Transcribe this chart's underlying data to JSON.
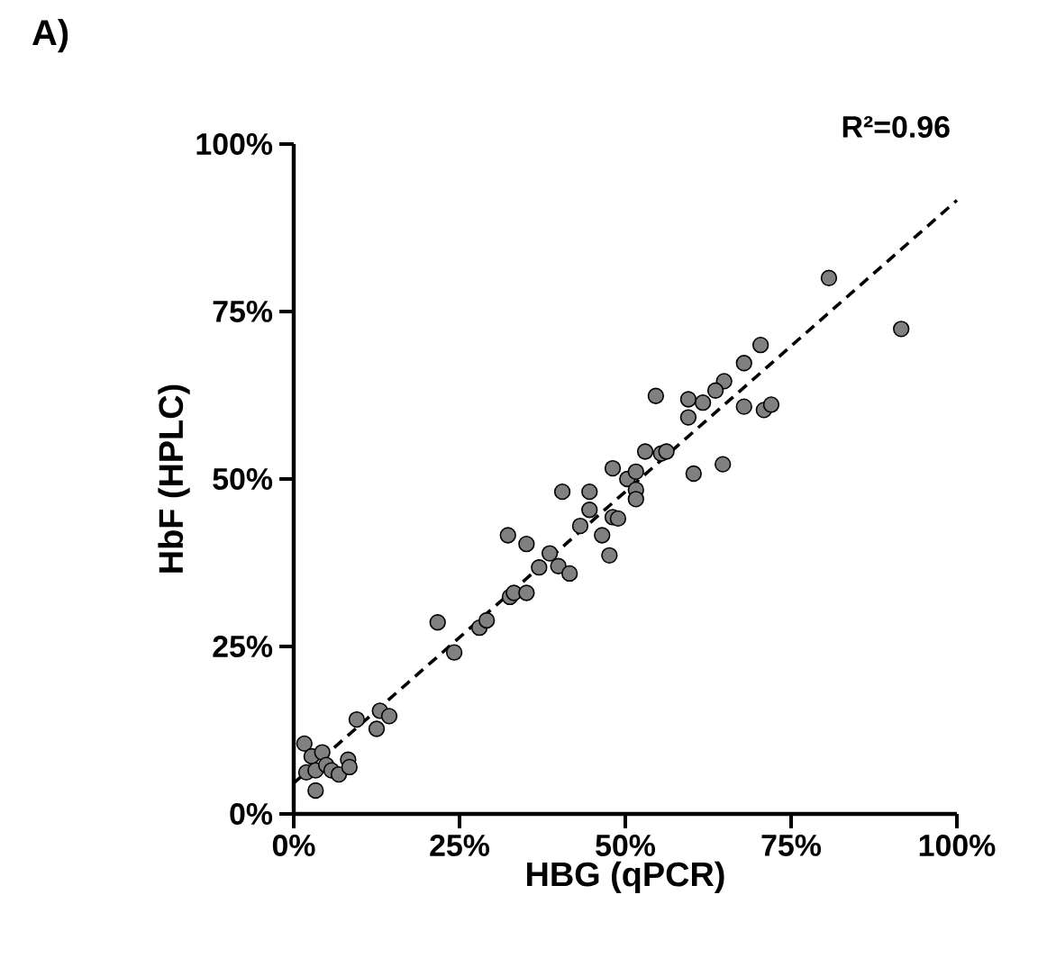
{
  "chart_data": {
    "type": "scatter",
    "title": "A)",
    "xlabel": "HBG (qPCR)",
    "ylabel": "HbF (HPLC)",
    "annotations": [
      "R²=0.96"
    ],
    "xlim": [
      0,
      100
    ],
    "ylim": [
      0,
      100
    ],
    "xticks": [
      {
        "value": 0,
        "label": "0%"
      },
      {
        "value": 25,
        "label": "25%"
      },
      {
        "value": 50,
        "label": "50%"
      },
      {
        "value": 75,
        "label": "75%"
      },
      {
        "value": 100,
        "label": "100%"
      }
    ],
    "yticks": [
      {
        "value": 0,
        "label": "0%"
      },
      {
        "value": 25,
        "label": "25%"
      },
      {
        "value": 50,
        "label": "50%"
      },
      {
        "value": 75,
        "label": "75%"
      },
      {
        "value": 100,
        "label": "100%"
      }
    ],
    "grid": false,
    "series": [
      {
        "color": "#808080",
        "marker": "circle",
        "x": [
          1.6,
          2.7,
          4.3,
          1.9,
          3.3,
          3.3,
          4.9,
          5.7,
          6.8,
          8.2,
          8.4,
          9.5,
          12.5,
          13.0,
          14.4,
          21.7,
          24.2,
          28.0,
          29.1,
          32.3,
          32.6,
          33.2,
          35.1,
          35.1,
          37.0,
          38.6,
          39.9,
          41.6,
          40.5,
          43.2,
          44.6,
          44.6,
          46.5,
          47.6,
          48.1,
          48.9,
          48.1,
          50.3,
          51.6,
          51.6,
          51.6,
          53.0,
          55.4,
          80.7,
          91.6,
          70.4,
          67.9,
          64.9,
          63.6,
          59.5,
          61.7,
          59.5,
          67.9,
          70.9,
          72.0,
          56.2,
          60.3,
          64.7,
          54.6
        ],
        "values": [
          10.5,
          8.6,
          9.2,
          6.2,
          6.5,
          3.5,
          7.3,
          6.5,
          5.9,
          8.1,
          7.0,
          14.1,
          12.7,
          15.4,
          14.6,
          28.6,
          24.1,
          27.8,
          28.9,
          41.6,
          32.4,
          33.0,
          33.0,
          40.3,
          36.8,
          38.9,
          37.0,
          35.9,
          48.1,
          43.0,
          48.1,
          45.4,
          41.6,
          38.6,
          44.3,
          44.1,
          51.6,
          50.0,
          51.1,
          48.4,
          47.0,
          54.1,
          53.8,
          80.0,
          72.4,
          70.0,
          67.3,
          64.6,
          63.2,
          61.9,
          61.4,
          59.2,
          60.8,
          60.3,
          61.1,
          54.1,
          50.8,
          52.2,
          62.4
        ]
      },
      {
        "type": "line",
        "color": "#000000",
        "line_style": "dashed",
        "marker": "none",
        "x": [
          0,
          100
        ],
        "values": [
          4.6,
          91.6
        ]
      }
    ]
  }
}
